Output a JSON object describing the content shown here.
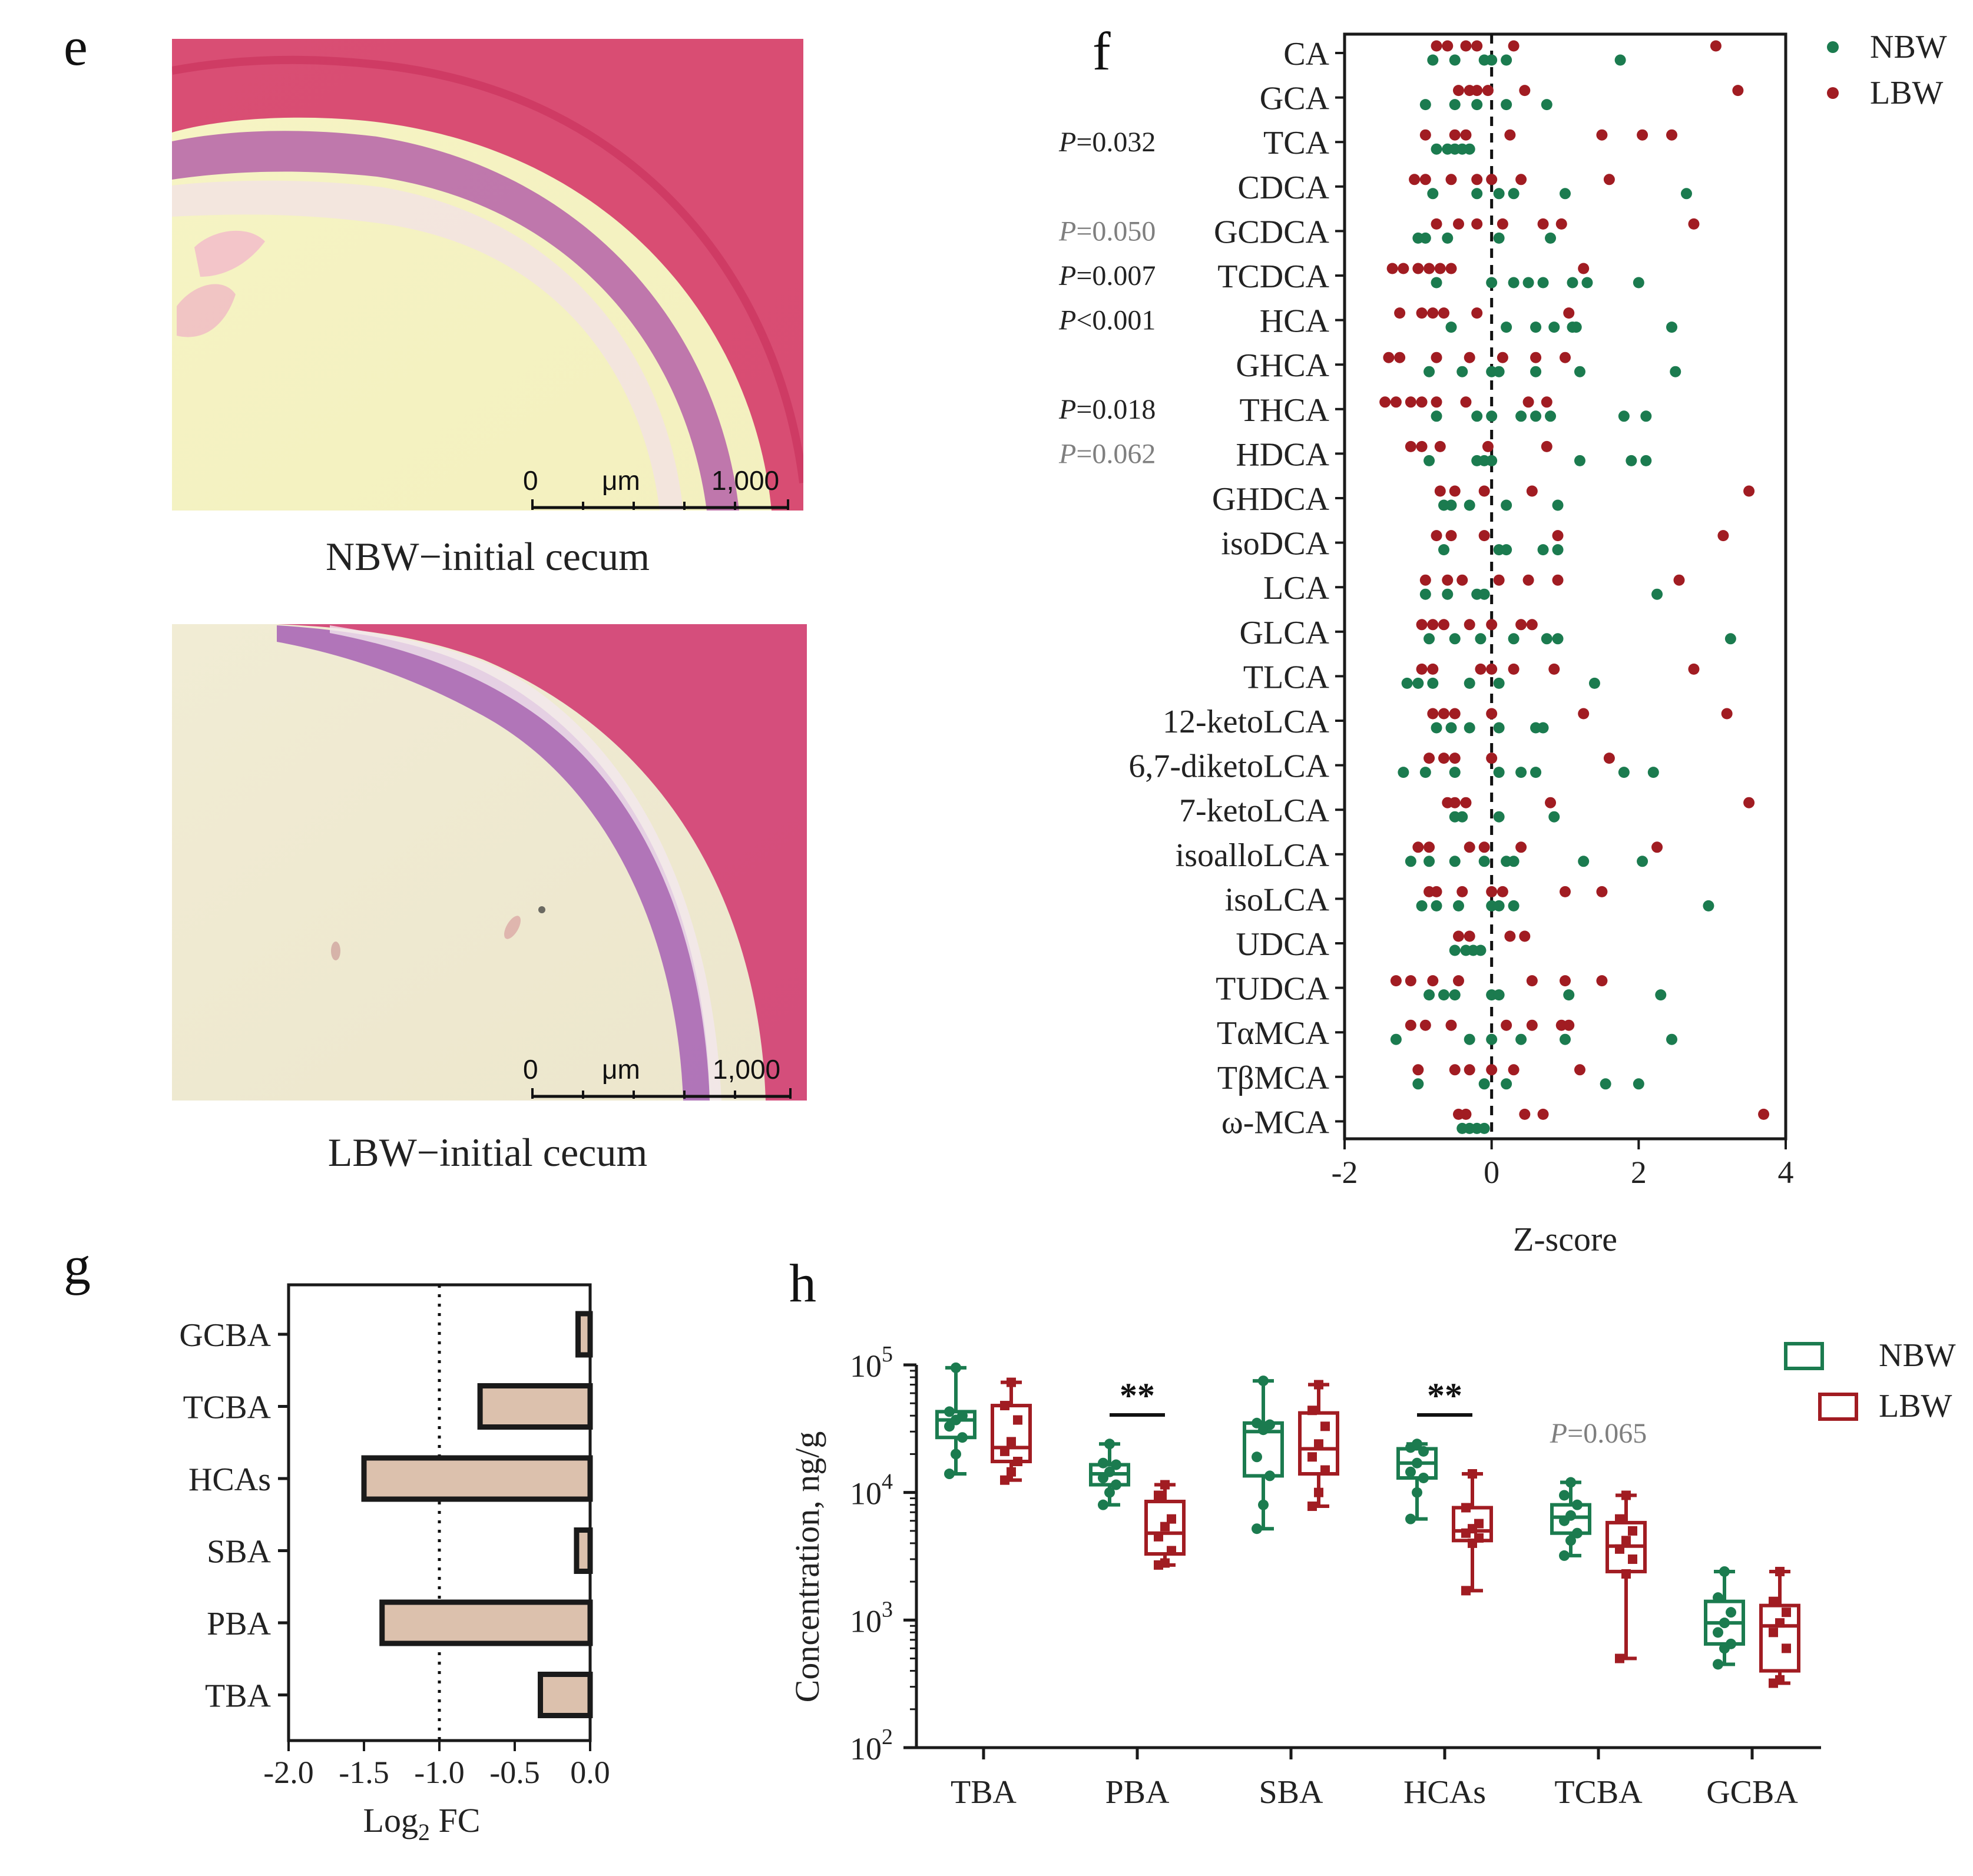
{
  "colors": {
    "nbw": "#1b7b4f",
    "lbw": "#a11c22",
    "bar": "#dcc1ad",
    "text": "#222222",
    "pgray": "#7f7f7f"
  },
  "panel_e": {
    "letter": "e",
    "images": [
      {
        "caption": "NBW−initial cecum",
        "scale_start": "0",
        "scale_unit": "μm",
        "scale_end": "1,000"
      },
      {
        "caption": "LBW−initial cecum",
        "scale_start": "0",
        "scale_unit": "μm",
        "scale_end": "1,000"
      }
    ]
  },
  "panel_f": {
    "letter": "f",
    "legend": [
      {
        "label": "NBW",
        "color_key": "nbw"
      },
      {
        "label": "LBW",
        "color_key": "lbw"
      }
    ]
  },
  "panel_g": {
    "letter": "g"
  },
  "panel_h": {
    "letter": "h",
    "legend": [
      {
        "label": "NBW",
        "color_key": "nbw"
      },
      {
        "label": "LBW",
        "color_key": "lbw"
      }
    ]
  },
  "chart_data": [
    {
      "id": "f",
      "type": "scatter",
      "title": "",
      "xlabel": "Z-score",
      "ylabel": "",
      "xlim": [
        -2,
        4
      ],
      "xticks": [
        "-2",
        "0",
        "2",
        "4"
      ],
      "reference_line": 0,
      "categories": [
        "CA",
        "GCA",
        "TCA",
        "CDCA",
        "GCDCA",
        "TCDCA",
        "HCA",
        "GHCA",
        "THCA",
        "HDCA",
        "GHDCA",
        "isoDCA",
        "LCA",
        "GLCA",
        "TLCA",
        "12-ketoLCA",
        "6,7-diketoLCA",
        "7-ketoLCA",
        "isoalloLCA",
        "isoLCA",
        "UDCA",
        "TUDCA",
        "TαMCA",
        "TβMCA",
        "ω-MCA"
      ],
      "pvalues": [
        {
          "category": "TCA",
          "text": "=0.032",
          "significant": true
        },
        {
          "category": "GCDCA",
          "text": "=0.050",
          "significant": false
        },
        {
          "category": "TCDCA",
          "text": "=0.007",
          "significant": true
        },
        {
          "category": "HCA",
          "text": "<0.001",
          "significant": true
        },
        {
          "category": "THCA",
          "text": "=0.018",
          "significant": true
        },
        {
          "category": "HDCA",
          "text": "=0.062",
          "significant": false
        }
      ],
      "series": [
        {
          "name": "NBW",
          "values": [
            [
              -0.8,
              -0.5,
              -0.1,
              0.0,
              0.2,
              1.75
            ],
            [
              -0.9,
              -0.5,
              -0.2,
              0.2,
              0.75
            ],
            [
              -0.75,
              -0.6,
              -0.5,
              -0.4,
              -0.3
            ],
            [
              -0.8,
              -0.2,
              0.1,
              0.3,
              1.0,
              2.65
            ],
            [
              -1.0,
              -0.9,
              -0.6,
              0.1,
              0.8
            ],
            [
              -0.75,
              0.0,
              0.3,
              0.5,
              0.7,
              1.1,
              1.3,
              2.0
            ],
            [
              -0.55,
              0.2,
              0.6,
              0.85,
              1.1,
              1.15,
              2.45
            ],
            [
              -0.85,
              -0.4,
              0.0,
              0.1,
              0.6,
              1.2,
              2.5
            ],
            [
              -0.75,
              -0.2,
              0.0,
              0.4,
              0.6,
              0.8,
              1.8,
              2.1
            ],
            [
              -0.85,
              -0.2,
              -0.1,
              0.0,
              1.2,
              1.9,
              2.1
            ],
            [
              -0.65,
              -0.55,
              -0.3,
              0.2,
              0.9
            ],
            [
              -0.65,
              0.1,
              0.2,
              0.7,
              0.9
            ],
            [
              -0.9,
              -0.6,
              -0.2,
              -0.1,
              2.25
            ],
            [
              -0.85,
              -0.5,
              -0.15,
              0.3,
              0.75,
              0.9,
              3.25
            ],
            [
              -1.15,
              -1.0,
              -0.8,
              -0.3,
              0.1,
              1.4
            ],
            [
              -0.75,
              -0.55,
              -0.3,
              0.1,
              0.6,
              0.7
            ],
            [
              -1.2,
              -0.9,
              -0.5,
              0.1,
              0.4,
              0.6,
              1.8,
              2.2
            ],
            [
              -0.5,
              -0.4,
              0.1,
              0.85
            ],
            [
              -1.1,
              -0.85,
              -0.5,
              -0.1,
              0.2,
              0.3,
              1.25,
              2.05
            ],
            [
              -0.95,
              -0.75,
              -0.45,
              0.0,
              0.1,
              0.3,
              2.95
            ],
            [
              -0.5,
              -0.35,
              -0.25,
              -0.15
            ],
            [
              -0.85,
              -0.65,
              -0.5,
              0.0,
              0.1,
              1.05,
              2.3
            ],
            [
              -1.3,
              -0.3,
              0.0,
              0.4,
              1.0,
              2.45
            ],
            [
              -1.0,
              -0.1,
              0.2,
              1.55,
              2.0
            ],
            [
              -0.4,
              -0.3,
              -0.2,
              -0.1
            ]
          ]
        },
        {
          "name": "LBW",
          "values": [
            [
              -0.75,
              -0.6,
              -0.35,
              -0.2,
              0.3,
              3.05
            ],
            [
              -0.45,
              -0.3,
              -0.2,
              -0.05,
              0.45,
              3.35
            ],
            [
              -0.9,
              -0.5,
              -0.35,
              0.25,
              1.5,
              2.05,
              2.45
            ],
            [
              -1.05,
              -0.9,
              -0.55,
              -0.2,
              0.0,
              0.4,
              1.6
            ],
            [
              -0.75,
              -0.45,
              -0.2,
              0.15,
              0.7,
              0.95,
              2.75
            ],
            [
              -1.35,
              -1.2,
              -1.0,
              -0.85,
              -0.7,
              -0.55,
              1.25
            ],
            [
              -1.25,
              -0.95,
              -0.8,
              -0.65,
              -0.2,
              1.05
            ],
            [
              -1.4,
              -1.25,
              -0.75,
              -0.3,
              0.15,
              0.6,
              1.0
            ],
            [
              -1.45,
              -1.3,
              -1.1,
              -0.95,
              -0.75,
              -0.35,
              0.5,
              0.75
            ],
            [
              -1.1,
              -0.95,
              -0.7,
              -0.05,
              0.75
            ],
            [
              -0.7,
              -0.5,
              -0.1,
              0.55,
              3.5
            ],
            [
              -0.75,
              -0.55,
              -0.1,
              0.9,
              3.15
            ],
            [
              -0.9,
              -0.6,
              -0.4,
              0.1,
              0.5,
              0.9,
              2.55
            ],
            [
              -0.95,
              -0.8,
              -0.65,
              -0.3,
              0.0,
              0.4,
              0.55
            ],
            [
              -0.95,
              -0.8,
              -0.15,
              0.0,
              0.3,
              0.85,
              2.75
            ],
            [
              -0.8,
              -0.65,
              -0.5,
              0.0,
              1.25,
              3.2
            ],
            [
              -0.85,
              -0.65,
              -0.5,
              0.0,
              1.6
            ],
            [
              -0.6,
              -0.5,
              -0.35,
              0.8,
              3.5
            ],
            [
              -1.0,
              -0.85,
              -0.3,
              -0.1,
              0.4,
              2.25
            ],
            [
              -0.85,
              -0.75,
              -0.4,
              0.0,
              0.15,
              1.0,
              1.5
            ],
            [
              -0.45,
              -0.3,
              0.25,
              0.45
            ],
            [
              -1.3,
              -1.1,
              -0.8,
              -0.45,
              0.55,
              1.0,
              1.5
            ],
            [
              -1.1,
              -0.9,
              -0.55,
              0.2,
              0.55,
              0.95,
              1.05
            ],
            [
              -1.0,
              -0.5,
              -0.3,
              0.0,
              0.3,
              1.2
            ],
            [
              -0.45,
              -0.35,
              0.45,
              0.7,
              3.7
            ]
          ]
        }
      ]
    },
    {
      "id": "g",
      "type": "bar",
      "orientation": "horizontal",
      "title": "",
      "xlabel": "Log",
      "xlabel_sub": "2",
      "xlabel_tail": " FC",
      "ylabel": "",
      "xlim": [
        -2.0,
        0.0
      ],
      "xticks": [
        "-2.0",
        "-1.5",
        "-1.0",
        "-0.5",
        "0.0"
      ],
      "reference_line": -1.0,
      "categories": [
        "GCBA",
        "TCBA",
        "HCAs",
        "SBA",
        "PBA",
        "TBA"
      ],
      "values": [
        -0.08,
        -0.73,
        -1.5,
        -0.09,
        -1.38,
        -0.33
      ]
    },
    {
      "id": "h",
      "type": "box",
      "title": "",
      "xlabel": "",
      "ylabel": "Concentration, ng/g",
      "yscale": "log",
      "ylim": [
        100,
        100000
      ],
      "yticks": [
        {
          "base": "10",
          "exp": "2"
        },
        {
          "base": "10",
          "exp": "3"
        },
        {
          "base": "10",
          "exp": "4"
        },
        {
          "base": "10",
          "exp": "5"
        }
      ],
      "categories": [
        "TBA",
        "PBA",
        "SBA",
        "HCAs",
        "TCBA",
        "GCBA"
      ],
      "annotations": [
        {
          "category": "PBA",
          "text": "**"
        },
        {
          "category": "HCAs",
          "text": "**"
        },
        {
          "category": "TCBA",
          "text": "=0.065",
          "prefix": "P",
          "significant": false
        }
      ],
      "series": [
        {
          "name": "NBW",
          "boxes": [
            {
              "min": 14000,
              "q1": 27000,
              "median": 37000,
              "q3": 43000,
              "max": 95000,
              "points": [
                14000,
                20000,
                27000,
                33000,
                37000,
                40000,
                43000,
                95000
              ]
            },
            {
              "min": 8000,
              "q1": 11500,
              "median": 14000,
              "q3": 16500,
              "max": 24000,
              "points": [
                8000,
                10000,
                11500,
                13000,
                14500,
                16500,
                17000,
                24000
              ]
            },
            {
              "min": 5200,
              "q1": 13500,
              "median": 30000,
              "q3": 35000,
              "max": 75000,
              "points": [
                5200,
                8000,
                13500,
                19000,
                31000,
                34000,
                35000,
                75000
              ]
            },
            {
              "min": 6200,
              "q1": 13000,
              "median": 17000,
              "q3": 22000,
              "max": 24000,
              "points": [
                6200,
                10000,
                13000,
                14500,
                17000,
                21000,
                22500,
                24000
              ]
            },
            {
              "min": 3200,
              "q1": 4800,
              "median": 6400,
              "q3": 8000,
              "max": 12000,
              "points": [
                3200,
                4200,
                4800,
                6000,
                6600,
                8000,
                9500,
                12000
              ]
            },
            {
              "min": 450,
              "q1": 650,
              "median": 950,
              "q3": 1400,
              "max": 2400,
              "points": [
                450,
                600,
                650,
                800,
                950,
                1150,
                1500,
                2400
              ]
            }
          ]
        },
        {
          "name": "LBW",
          "boxes": [
            {
              "min": 12500,
              "q1": 17500,
              "median": 22500,
              "q3": 48000,
              "max": 73000,
              "points": [
                12500,
                14500,
                17500,
                21000,
                25000,
                37000,
                48000,
                73000
              ]
            },
            {
              "min": 2700,
              "q1": 3300,
              "median": 4800,
              "q3": 8500,
              "max": 11500,
              "points": [
                2700,
                2800,
                3500,
                4500,
                5400,
                6200,
                9500,
                11500
              ]
            },
            {
              "min": 7800,
              "q1": 14000,
              "median": 22000,
              "q3": 42000,
              "max": 70000,
              "points": [
                7800,
                10000,
                15000,
                19000,
                24000,
                33000,
                44000,
                70000
              ]
            },
            {
              "min": 1700,
              "q1": 4200,
              "median": 5000,
              "q3": 7600,
              "max": 14000,
              "points": [
                1700,
                4000,
                4400,
                4800,
                5200,
                5700,
                7600,
                14000
              ]
            },
            {
              "min": 500,
              "q1": 2400,
              "median": 3800,
              "q3": 5800,
              "max": 9500,
              "points": [
                500,
                2300,
                3000,
                3600,
                4200,
                5000,
                6200,
                9500
              ]
            },
            {
              "min": 320,
              "q1": 400,
              "median": 900,
              "q3": 1300,
              "max": 2400,
              "points": [
                320,
                340,
                600,
                800,
                950,
                1150,
                1400,
                2400
              ]
            }
          ]
        }
      ]
    }
  ]
}
